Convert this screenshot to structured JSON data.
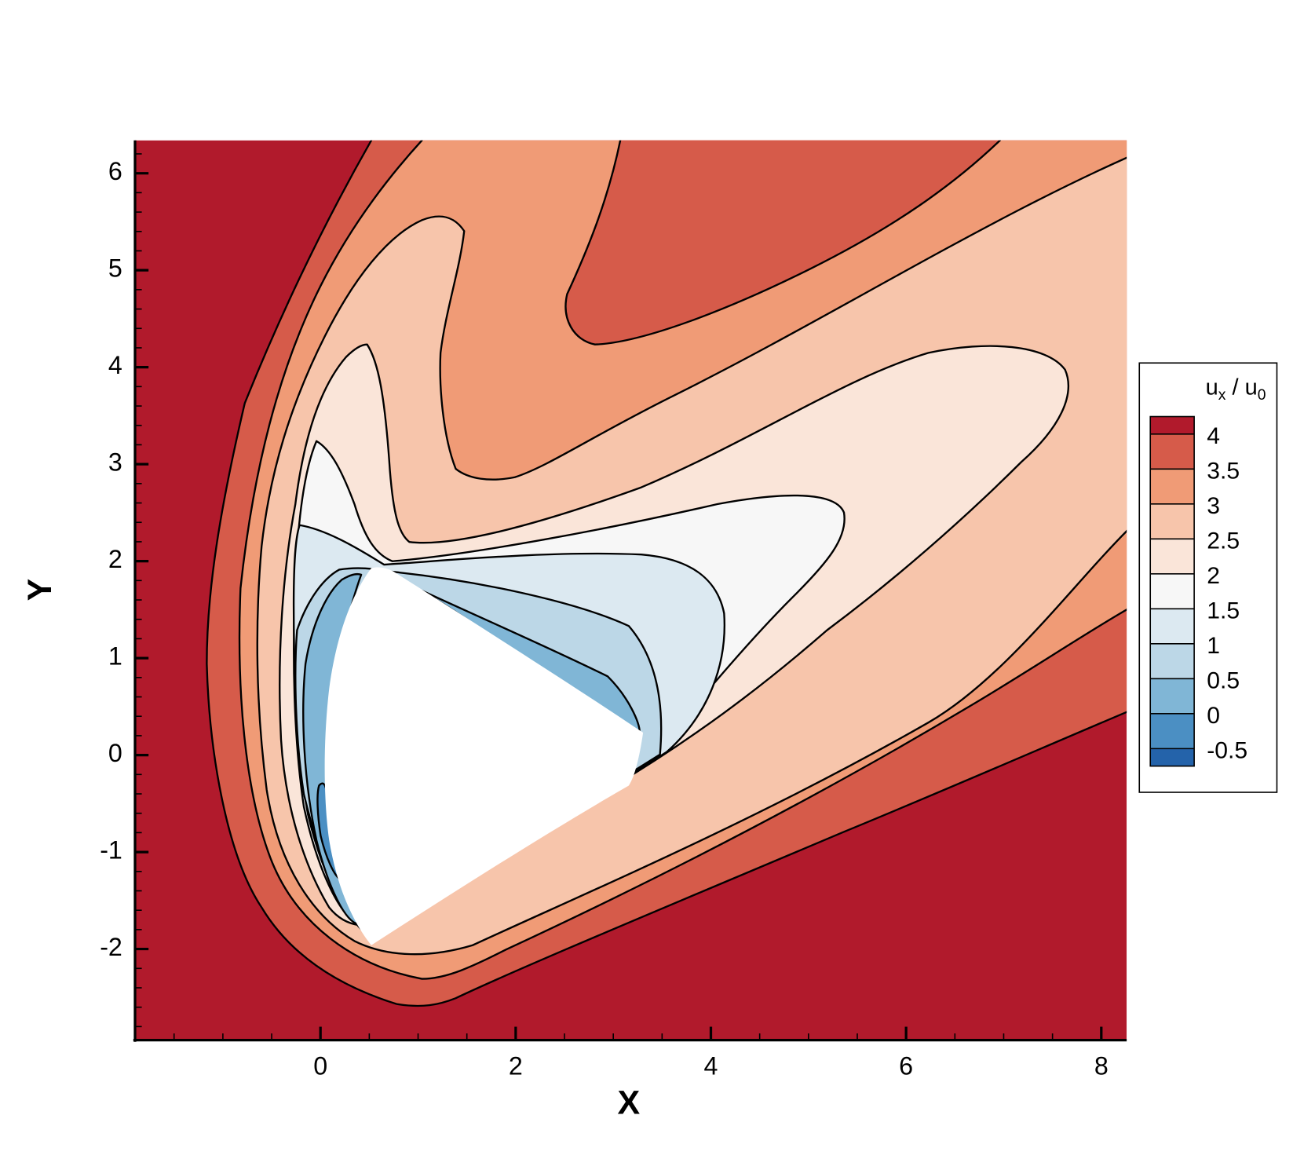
{
  "chart_data": {
    "type": "contour",
    "x_label": "X",
    "y_label": "Y",
    "xlim": [
      -1.9,
      8.26
    ],
    "ylim": [
      -2.94,
      6.34
    ],
    "xticks": [
      0,
      2,
      4,
      6,
      8
    ],
    "yticks": [
      -2,
      -1,
      0,
      1,
      2,
      3,
      4,
      5,
      6
    ],
    "xminor_step": 0.5,
    "yminor_step": 0.2,
    "contour_lines": true,
    "colorbar": {
      "title": [
        "u",
        "x",
        " / u",
        "0"
      ],
      "levels": [
        -0.5,
        0,
        0.5,
        1,
        1.5,
        2,
        2.5,
        3,
        3.5,
        4
      ],
      "colors": [
        "#2463aa",
        "#4b8fc3",
        "#80b6d6",
        "#bcd7e7",
        "#dce9f1",
        "#f7f7f7",
        "#fae5d9",
        "#f7c5ab",
        "#f09b76",
        "#d65b4a",
        "#b11a2c"
      ]
    }
  }
}
